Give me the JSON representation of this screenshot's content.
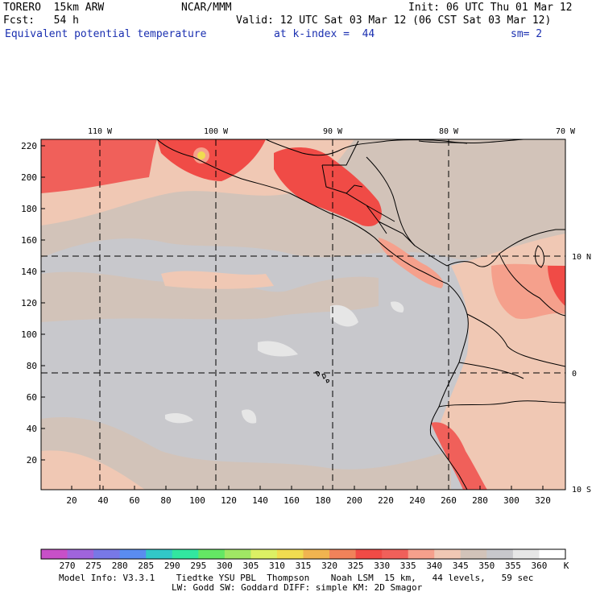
{
  "header": {
    "model": "TORERO  15km ARW",
    "center": "NCAR/MMM",
    "init": "Init: 06 UTC Thu 01 Mar 12",
    "fcst": "Fcst:   54 h",
    "valid": "Valid: 12 UTC Sat 03 Mar 12 (06 CST Sat 03 Mar 12)",
    "field": "Equivalent potential temperature",
    "level": "at k-index =  44",
    "smooth": "sm= 2"
  },
  "map": {
    "lon_labels": [
      "110 W",
      "100 W",
      "90 W",
      "80 W",
      "70 W"
    ],
    "lat_labels": [
      "10 N",
      "0",
      "10 S"
    ],
    "y_ticks": [
      "220",
      "200",
      "180",
      "160",
      "140",
      "120",
      "100",
      "80",
      "60",
      "40",
      "20"
    ],
    "x_ticks": [
      "20",
      "40",
      "60",
      "80",
      "100",
      "120",
      "140",
      "160",
      "180",
      "200",
      "220",
      "240",
      "260",
      "280",
      "300",
      "320"
    ]
  },
  "colorbar": {
    "labels": [
      "270",
      "275",
      "280",
      "285",
      "290",
      "295",
      "300",
      "305",
      "310",
      "315",
      "320",
      "325",
      "330",
      "335",
      "340",
      "345",
      "350",
      "355",
      "360"
    ],
    "unit": "K",
    "colors": [
      "#c850c8",
      "#a064dc",
      "#7878e6",
      "#5a8cf0",
      "#32c8c8",
      "#32e6a0",
      "#64e664",
      "#a0e664",
      "#dcf064",
      "#f0dc50",
      "#f0b450",
      "#f0825a",
      "#f04b46",
      "#f0605a",
      "#f5a08c",
      "#f0c8b4",
      "#d2c3b9",
      "#c8c8cc",
      "#e6e6e6",
      "#ffffff"
    ]
  },
  "footer": {
    "line1": "Model Info: V3.3.1    Tiedtke YSU PBL  Thompson    Noah LSM  15 km,   44 levels,   59 sec",
    "line2": "LW: Godd SW: Goddard DIFF: simple KM: 2D Smagor"
  }
}
